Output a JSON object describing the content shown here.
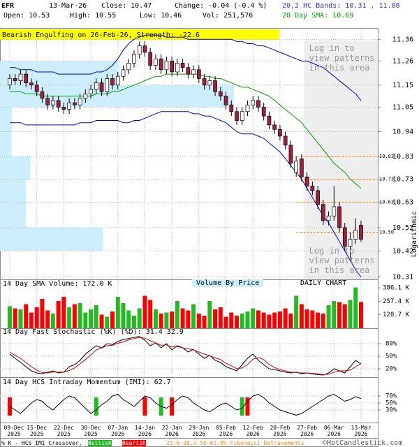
{
  "header": {
    "symbol": "EFR",
    "date": "13-Mar-26",
    "close": "Close: 10.47",
    "change": "Change: -0.04 (-0.4 %)",
    "open": "Open: 10.53",
    "high": "High: 10.55",
    "low": "Low: 10.46",
    "volume": "Vol: 251,576",
    "bands": "20,2 HC Bands: 10.31 , 11.08",
    "sma": "20 Day SMA: 10.69"
  },
  "chart_data": [
    {
      "type": "candlestick",
      "title": "Bearish Engulfing on 26-Feb-26, Strength: -22.6",
      "y_label": "Logarithmic",
      "log_scale": true,
      "grid": true,
      "categories": [
        "09-Dec 2025",
        null,
        null,
        null,
        null,
        "15-Dec 2025",
        null,
        null,
        null,
        null,
        "22-Dec 2025",
        null,
        null,
        null,
        null,
        "30-Dec 2025",
        null,
        null,
        null,
        null,
        "07-Jan 2026",
        null,
        null,
        null,
        null,
        "14-Jan 2026",
        null,
        null,
        null,
        null,
        "22-Jan 2026",
        null,
        null,
        null,
        null,
        "29-Jan 2026",
        null,
        null,
        null,
        null,
        "05-Feb 2026",
        null,
        null,
        null,
        null,
        "12-Feb 2026",
        null,
        null,
        null,
        null,
        "20-Feb 2026",
        null,
        null,
        null,
        null,
        "27-Feb 2026",
        null,
        null,
        null,
        null,
        "06-Mar 2026",
        null,
        null,
        null,
        null,
        "13-Mar 2026"
      ],
      "open": [
        11.15,
        11.18,
        11.17,
        11.2,
        11.16,
        11.15,
        11.12,
        11.09,
        11.06,
        11.08,
        11.05,
        11.04,
        11.07,
        11.06,
        11.09,
        11.11,
        11.13,
        11.16,
        11.12,
        11.18,
        11.15,
        11.19,
        11.22,
        11.25,
        11.29,
        11.33,
        11.3,
        11.24,
        11.27,
        11.22,
        11.26,
        11.21,
        11.25,
        11.23,
        11.2,
        11.22,
        11.18,
        11.15,
        11.17,
        11.12,
        11.1,
        11.06,
        11.03,
        10.99,
        11.03,
        11.06,
        11.08,
        11.05,
        11.01,
        10.97,
        10.95,
        10.92,
        10.88,
        10.76,
        10.82,
        10.74,
        10.7,
        10.68,
        10.62,
        10.55,
        10.57,
        10.61,
        10.52,
        10.44,
        10.47,
        10.53
      ],
      "high": [
        11.2,
        11.2,
        11.22,
        11.22,
        11.18,
        11.17,
        11.14,
        11.11,
        11.1,
        11.1,
        11.07,
        11.09,
        11.09,
        11.11,
        11.13,
        11.15,
        11.18,
        11.18,
        11.2,
        11.2,
        11.21,
        11.24,
        11.27,
        11.31,
        11.35,
        11.35,
        11.32,
        11.29,
        11.29,
        11.28,
        11.28,
        11.27,
        11.27,
        11.25,
        11.24,
        11.24,
        11.2,
        11.19,
        11.19,
        11.14,
        11.12,
        11.08,
        11.05,
        11.05,
        11.08,
        11.1,
        11.1,
        11.07,
        11.03,
        10.99,
        10.97,
        10.94,
        10.9,
        10.83,
        10.84,
        10.76,
        10.72,
        10.7,
        10.64,
        10.59,
        10.7,
        10.63,
        10.54,
        10.5,
        10.56,
        10.55
      ],
      "low": [
        11.13,
        11.15,
        11.15,
        11.14,
        11.13,
        11.1,
        11.07,
        11.04,
        11.04,
        11.03,
        11.02,
        11.02,
        11.04,
        11.04,
        11.07,
        11.09,
        11.11,
        11.1,
        11.1,
        11.13,
        11.13,
        11.17,
        11.2,
        11.23,
        11.27,
        11.28,
        11.22,
        11.22,
        11.2,
        11.2,
        11.19,
        11.19,
        11.21,
        11.18,
        11.18,
        11.16,
        11.13,
        11.13,
        11.1,
        11.08,
        11.04,
        11.01,
        10.97,
        10.97,
        11.01,
        11.04,
        11.03,
        10.99,
        10.95,
        10.93,
        10.9,
        10.86,
        10.78,
        10.74,
        10.72,
        10.68,
        10.66,
        10.6,
        10.53,
        10.53,
        10.55,
        10.5,
        10.42,
        10.38,
        10.45,
        10.46
      ],
      "close": [
        11.18,
        11.17,
        11.2,
        11.16,
        11.15,
        11.12,
        11.09,
        11.06,
        11.08,
        11.05,
        11.04,
        11.07,
        11.06,
        11.09,
        11.11,
        11.13,
        11.16,
        11.12,
        11.18,
        11.15,
        11.19,
        11.22,
        11.25,
        11.29,
        11.33,
        11.3,
        11.24,
        11.27,
        11.22,
        11.26,
        11.21,
        11.25,
        11.23,
        11.2,
        11.22,
        11.18,
        11.15,
        11.17,
        11.12,
        11.1,
        11.06,
        11.03,
        10.99,
        11.03,
        11.06,
        11.08,
        11.05,
        11.01,
        10.97,
        10.95,
        10.92,
        10.88,
        10.8,
        10.81,
        10.74,
        10.7,
        10.68,
        10.62,
        10.55,
        10.57,
        10.61,
        10.52,
        10.44,
        10.47,
        10.51,
        10.47
      ],
      "colors": {
        "up": "#ffffff",
        "down": "#a0203c"
      },
      "overlays": [
        {
          "color": "#0000cc",
          "values": [
            11.23,
            11.23,
            11.22,
            11.22,
            11.22,
            11.21,
            11.21,
            11.21,
            11.21,
            11.2,
            11.2,
            11.2,
            11.2,
            11.2,
            11.2,
            11.2,
            11.21,
            11.21,
            11.22,
            11.24,
            11.27,
            11.31,
            11.34,
            11.36,
            11.37,
            11.38,
            11.38,
            11.38,
            11.38,
            11.37,
            11.37,
            11.37,
            11.37,
            11.36,
            11.36,
            11.36,
            11.36,
            11.36,
            11.36,
            11.36,
            11.36,
            11.36,
            11.35,
            11.35,
            11.34,
            11.34,
            11.33,
            11.33,
            11.32,
            11.31,
            11.3,
            11.29,
            11.28,
            11.27,
            11.26,
            11.26,
            11.25,
            11.24,
            11.23,
            11.21,
            11.19,
            11.17,
            11.15,
            11.13,
            11.11,
            11.08
          ]
        },
        {
          "color": "#0000cc",
          "values": [
            10.98,
            10.98,
            10.98,
            10.97,
            10.97,
            10.97,
            10.97,
            10.97,
            10.97,
            10.97,
            10.97,
            10.97,
            10.97,
            10.98,
            10.98,
            10.98,
            10.99,
            10.99,
            10.99,
            10.99,
            10.99,
            10.98,
            10.98,
            10.99,
            10.99,
            11.0,
            11.01,
            11.02,
            11.03,
            11.03,
            11.03,
            11.03,
            11.03,
            11.03,
            11.02,
            11.02,
            11.01,
            11.01,
            11.0,
            10.99,
            10.98,
            10.96,
            10.94,
            10.93,
            10.93,
            10.93,
            10.92,
            10.91,
            10.89,
            10.87,
            10.85,
            10.82,
            10.79,
            10.76,
            10.73,
            10.69,
            10.65,
            10.61,
            10.57,
            10.54,
            10.5,
            10.46,
            10.42,
            10.38,
            10.34,
            10.31
          ]
        },
        {
          "color": "#009900",
          "values": [
            11.12,
            11.12,
            11.12,
            11.11,
            11.11,
            11.11,
            11.1,
            11.1,
            11.1,
            11.1,
            11.1,
            11.1,
            11.1,
            11.1,
            11.1,
            11.1,
            11.11,
            11.11,
            11.11,
            11.12,
            11.12,
            11.13,
            11.14,
            11.15,
            11.16,
            11.17,
            11.18,
            11.19,
            11.19,
            11.2,
            11.2,
            11.2,
            11.2,
            11.2,
            11.2,
            11.2,
            11.19,
            11.19,
            11.18,
            11.18,
            11.17,
            11.16,
            11.15,
            11.14,
            11.14,
            11.13,
            11.12,
            11.11,
            11.1,
            11.08,
            11.06,
            11.04,
            11.02,
            11.0,
            10.98,
            10.95,
            10.92,
            10.89,
            10.86,
            10.83,
            10.8,
            10.78,
            10.76,
            10.73,
            10.71,
            10.69
          ]
        }
      ],
      "fib_color": "#ff8800",
      "fib_start": 53,
      "fib_levels": [
        10.83,
        10.73,
        10.63,
        {
          "value": 10.5,
          "label": "10.50"
        }
      ],
      "volume_by_price": {
        "color": "#cceeff",
        "bins": [
          10.42,
          10.52,
          10.63,
          10.73,
          10.83,
          10.94,
          11.05,
          11.15,
          11.26
        ],
        "values": [
          44,
          11,
          11,
          13,
          5,
          5,
          100,
          51
        ],
        "xlim": [
          0,
          100
        ]
      },
      "locked_notes": [
        "Log in to view patterns in this area",
        "Log in to view patterns in this area"
      ],
      "locked_from": 55,
      "vbp_label": "Volume By Price",
      "period_label": "DAILY CHART",
      "ylim": [
        10.3,
        11.4
      ],
      "yticks": [
        10.31,
        10.42,
        10.52,
        10.63,
        10.73,
        10.83,
        10.94,
        11.05,
        11.15,
        11.26,
        11.36
      ]
    },
    {
      "type": "bar",
      "title": "14 Day SMA Volume: 172.0 K",
      "colors": {
        "up": "#22bb22",
        "down": "#ff0000"
      },
      "values": [
        210000,
        190000,
        180000,
        230000,
        150000,
        200000,
        280000,
        170000,
        140000,
        260000,
        300000,
        200000,
        230000,
        240000,
        150000,
        180000,
        220000,
        130000,
        110000,
        160000,
        300000,
        240000,
        170000,
        120000,
        190000,
        310000,
        270000,
        180000,
        140000,
        150000,
        160000,
        260000,
        190000,
        170000,
        230000,
        140000,
        120000,
        260000,
        180000,
        200000,
        110000,
        150000,
        120000,
        140000,
        160000,
        190000,
        170000,
        150000,
        130000,
        150000,
        160000,
        190000,
        140000,
        310000,
        230000,
        180000,
        170000,
        150000,
        140000,
        220000,
        260000,
        250000,
        230000,
        270000,
        390000,
        251576
      ],
      "ylim": [
        0,
        440000
      ],
      "yticks": [
        {
          "value": 128700,
          "label": "128.7 K"
        },
        {
          "value": 257400,
          "label": "257.4 K"
        },
        {
          "value": 386100,
          "label": "386.1 K"
        }
      ]
    },
    {
      "type": "line",
      "title": "14 Day Fast Stochastic (%K) (%D): 31.4  32.9",
      "series": [
        {
          "color": "#000000",
          "values": [
            55,
            45,
            35,
            25,
            15,
            10,
            8,
            12,
            15,
            10,
            12,
            25,
            30,
            40,
            55,
            65,
            75,
            70,
            80,
            78,
            85,
            90,
            92,
            95,
            97,
            88,
            75,
            82,
            70,
            80,
            65,
            75,
            70,
            60,
            66,
            55,
            45,
            52,
            40,
            35,
            25,
            20,
            15,
            30,
            45,
            55,
            40,
            30,
            20,
            18,
            15,
            12,
            10,
            12,
            8,
            10,
            8,
            6,
            5,
            10,
            20,
            15,
            10,
            25,
            40,
            31.4
          ]
        },
        {
          "color": "#cc0000",
          "values": [
            60,
            52,
            45,
            35,
            25,
            17,
            11,
            10,
            12,
            12,
            12,
            16,
            22,
            32,
            42,
            53,
            65,
            70,
            75,
            76,
            81,
            84,
            89,
            92,
            95,
            93,
            87,
            82,
            76,
            77,
            72,
            73,
            70,
            68,
            65,
            60,
            55,
            51,
            46,
            42,
            33,
            27,
            20,
            22,
            30,
            43,
            47,
            42,
            30,
            23,
            18,
            15,
            12,
            11,
            10,
            10,
            9,
            8,
            6,
            7,
            12,
            15,
            15,
            17,
            25,
            32.9
          ]
        }
      ],
      "ylim": [
        0,
        100
      ],
      "yticks": [
        {
          "value": 20,
          "label": "20%"
        },
        {
          "value": 50,
          "label": "50%"
        },
        {
          "value": 80,
          "label": "80%"
        }
      ]
    },
    {
      "type": "line",
      "title": "14 Day HCS Intraday Momentum (IMI): 62.7",
      "series": [
        {
          "color": "#000000",
          "values": [
            40,
            30,
            20,
            35,
            50,
            60,
            55,
            40,
            30,
            45,
            60,
            70,
            65,
            50,
            35,
            20,
            30,
            45,
            55,
            70,
            75,
            60,
            50,
            40,
            55,
            70,
            65,
            50,
            40,
            35,
            45,
            60,
            70,
            65,
            50,
            40,
            30,
            25,
            35,
            45,
            50,
            40,
            30,
            35,
            55,
            70,
            75,
            65,
            50,
            40,
            30,
            25,
            20,
            15,
            20,
            30,
            40,
            50,
            60,
            70,
            75,
            65,
            55,
            60,
            68,
            62.7
          ]
        }
      ],
      "crossovers": [
        {
          "index": 0,
          "color": "#ff0000"
        },
        {
          "index": 16,
          "color": "#22bb22"
        },
        {
          "index": 25,
          "color": "#ff0000"
        },
        {
          "index": 28,
          "color": "#22bb22"
        },
        {
          "index": 30,
          "color": "#ff0000"
        },
        {
          "index": 43,
          "color": "#22bb22"
        },
        {
          "index": 44,
          "color": "#ff0000"
        }
      ],
      "ylim": [
        0,
        100
      ],
      "yticks": [
        {
          "value": 30,
          "label": "30%"
        },
        {
          "value": 50,
          "label": "50%"
        },
        {
          "value": 70,
          "label": "70%"
        }
      ]
    }
  ],
  "footer": {
    "crossover": "% K - HCS IMI Crossover,",
    "bullish": "Bullish",
    "bearish": "Bearish",
    "fibonacci": "23.6-38.2-50-61.8% Fibonacci Retracements",
    "site": "©HotCandlestick.com"
  }
}
